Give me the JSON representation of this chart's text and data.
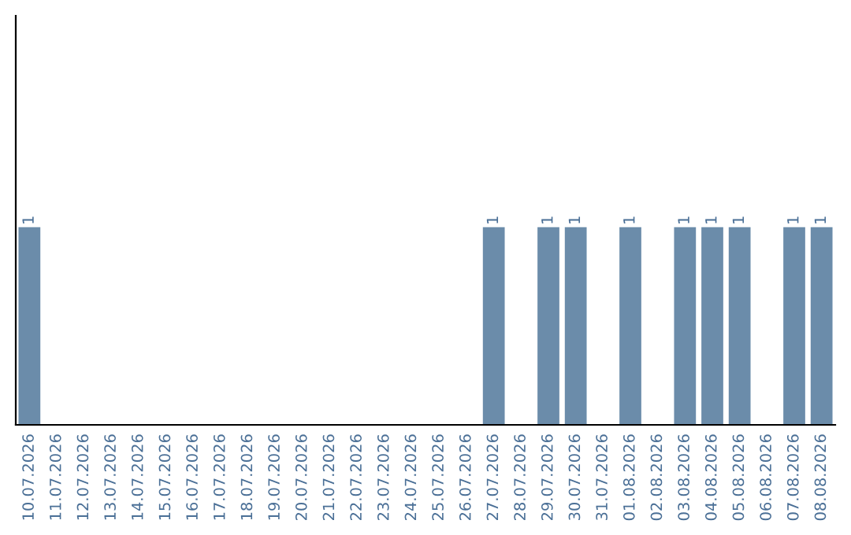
{
  "chart_data": {
    "type": "bar",
    "categories": [
      "10.07.2026",
      "11.07.2026",
      "12.07.2026",
      "13.07.2026",
      "14.07.2026",
      "15.07.2026",
      "16.07.2026",
      "17.07.2026",
      "18.07.2026",
      "19.07.2026",
      "20.07.2026",
      "21.07.2026",
      "22.07.2026",
      "23.07.2026",
      "24.07.2026",
      "25.07.2026",
      "26.07.2026",
      "27.07.2026",
      "28.07.2026",
      "29.07.2026",
      "30.07.2026",
      "31.07.2026",
      "01.08.2026",
      "02.08.2026",
      "03.08.2026",
      "04.08.2026",
      "05.08.2026",
      "06.08.2026",
      "07.08.2026",
      "08.08.2026"
    ],
    "values": [
      1,
      0,
      0,
      0,
      0,
      0,
      0,
      0,
      0,
      0,
      0,
      0,
      0,
      0,
      0,
      0,
      0,
      1,
      0,
      1,
      1,
      0,
      1,
      0,
      1,
      1,
      1,
      0,
      1,
      1
    ],
    "value_labels": [
      "1",
      null,
      null,
      null,
      null,
      null,
      null,
      null,
      null,
      null,
      null,
      null,
      null,
      null,
      null,
      null,
      null,
      "1",
      null,
      "1",
      "1",
      null,
      "1",
      null,
      "1",
      "1",
      "1",
      null,
      "1",
      "1"
    ],
    "color": "#6b8caa",
    "tick_labels": "x",
    "grid": false,
    "legend": false
  }
}
